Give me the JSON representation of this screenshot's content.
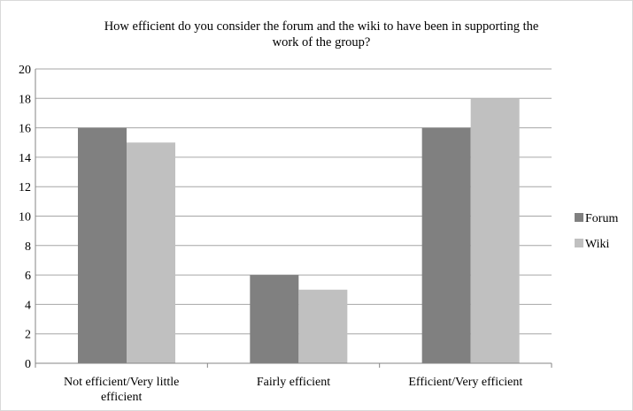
{
  "chart_data": {
    "type": "bar",
    "title": "How efficient do you consider the forum and the wiki to have been in supporting the work of the group?",
    "title_lines": [
      "How efficient do you consider the forum and the wiki to have been in supporting the",
      "work of the group?"
    ],
    "categories": [
      "Not efficient/Very little efficient",
      "Fairly efficient",
      "Efficient/Very efficient"
    ],
    "category_lines": [
      [
        "Not efficient/Very little",
        "efficient"
      ],
      [
        "Fairly efficient"
      ],
      [
        "Efficient/Very efficient"
      ]
    ],
    "series": [
      {
        "name": "Forum",
        "values": [
          16,
          6,
          16
        ],
        "color": "#808080"
      },
      {
        "name": "Wiki",
        "values": [
          15,
          5,
          18
        ],
        "color": "#c0c0c0"
      }
    ],
    "xlabel": "",
    "ylabel": "",
    "ylim": [
      0,
      20
    ],
    "yticks": [
      0,
      2,
      4,
      6,
      8,
      10,
      12,
      14,
      16,
      18,
      20
    ],
    "grid": true,
    "gridline_color": "#a6a6a6",
    "legend_position": "right"
  }
}
